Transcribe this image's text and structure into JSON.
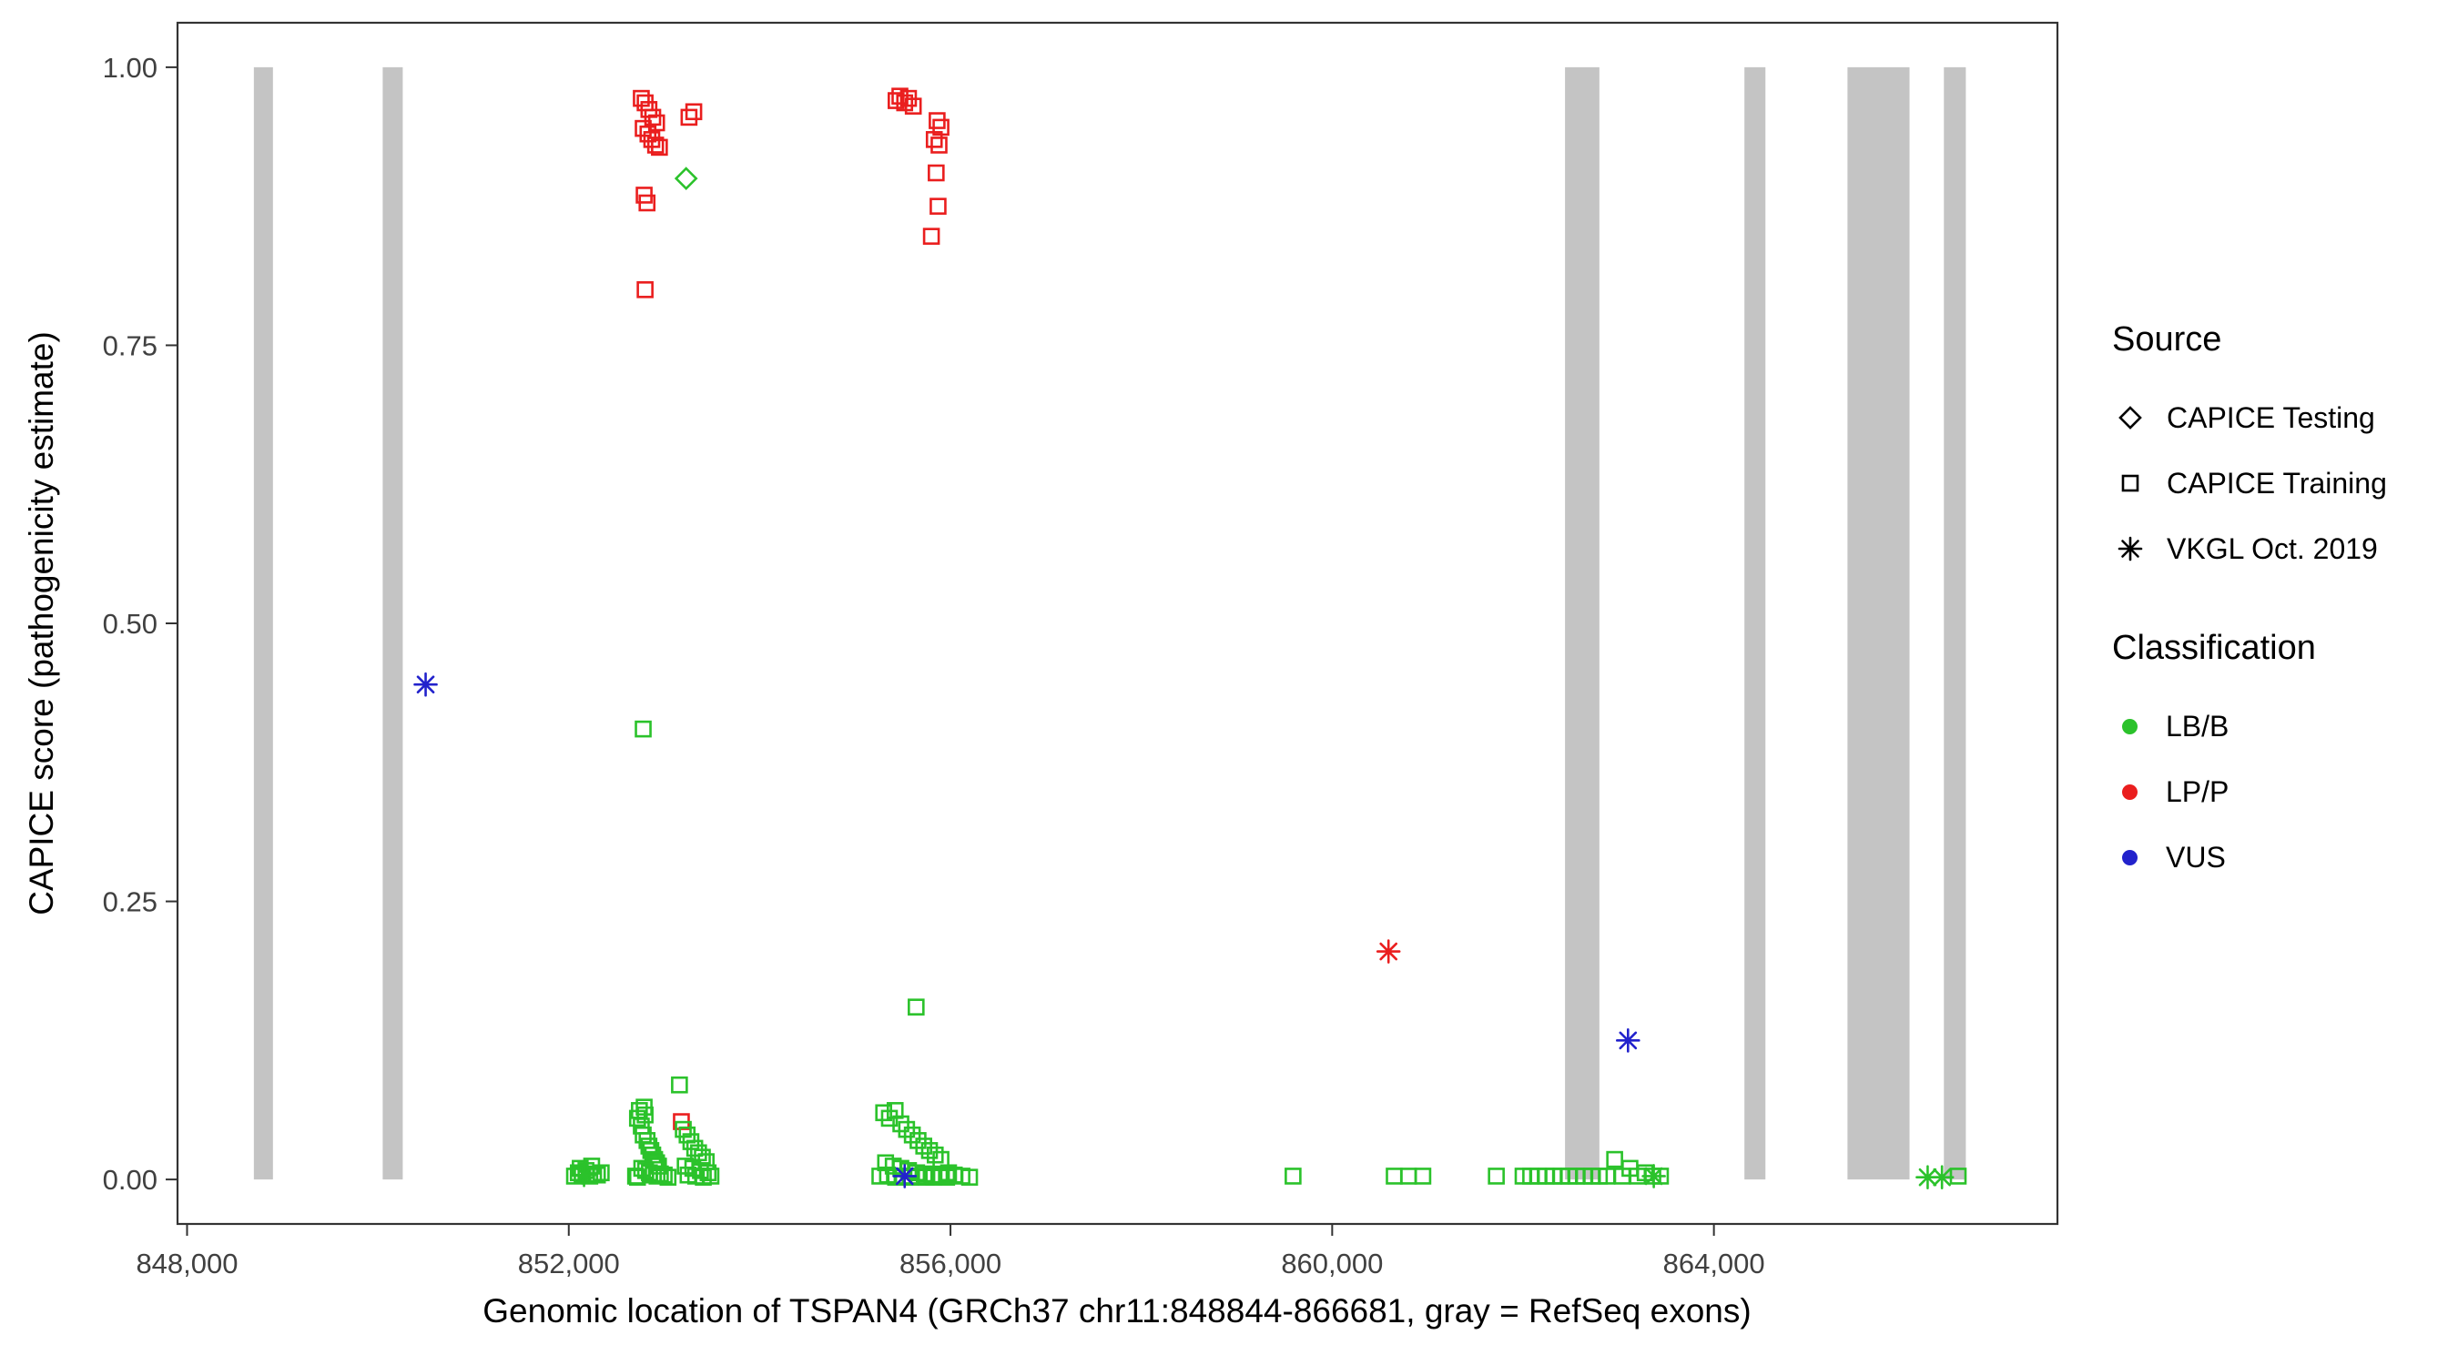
{
  "chart_data": {
    "type": "scatter",
    "xlabel": "Genomic location of TSPAN4 (GRCh37 chr11:848844-866681, gray = RefSeq exons)",
    "ylabel": "CAPICE score (pathogenicity estimate)",
    "xlim": [
      847900,
      867600
    ],
    "ylim": [
      -0.04,
      1.04
    ],
    "x_ticks": [
      848000,
      852000,
      856000,
      860000,
      864000
    ],
    "x_tick_labels": [
      "848,000",
      "852,000",
      "856,000",
      "860,000",
      "864,000"
    ],
    "y_ticks": [
      0,
      0.25,
      0.5,
      0.75,
      1
    ],
    "y_tick_labels": [
      "0.00",
      "0.25",
      "0.50",
      "0.75",
      "1.00"
    ],
    "exon_note": "gray = RefSeq exons",
    "exon_color": "#C4C4C4",
    "exons": [
      [
        848700,
        848900
      ],
      [
        850050,
        850260
      ],
      [
        862440,
        862800
      ],
      [
        864320,
        864540
      ],
      [
        865400,
        866050
      ],
      [
        866410,
        866640
      ]
    ],
    "colors": {
      "LB/B": "#2BC22B",
      "LP/P": "#EA1E1E",
      "VUS": "#2222CC"
    },
    "series": [
      {
        "name": "CAPICE Testing / LB/B",
        "source": "CAPICE Testing",
        "classification": "LB/B",
        "marker": "diamond",
        "points": [
          [
            853230,
            0.9
          ]
        ]
      },
      {
        "name": "CAPICE Training / LP/P",
        "source": "CAPICE Training",
        "classification": "LP/P",
        "marker": "square",
        "points": [
          [
            852760,
            0.972
          ],
          [
            852800,
            0.968
          ],
          [
            852840,
            0.962
          ],
          [
            852880,
            0.955
          ],
          [
            852920,
            0.95
          ],
          [
            852780,
            0.945
          ],
          [
            852830,
            0.94
          ],
          [
            852870,
            0.935
          ],
          [
            852910,
            0.93
          ],
          [
            852950,
            0.928
          ],
          [
            853260,
            0.955
          ],
          [
            853310,
            0.96
          ],
          [
            852790,
            0.885
          ],
          [
            852820,
            0.878
          ],
          [
            852800,
            0.8
          ],
          [
            853180,
            0.052
          ],
          [
            855430,
            0.97
          ],
          [
            855470,
            0.974
          ],
          [
            855520,
            0.968
          ],
          [
            855560,
            0.972
          ],
          [
            855610,
            0.965
          ],
          [
            855860,
            0.952
          ],
          [
            855900,
            0.946
          ],
          [
            855830,
            0.935
          ],
          [
            855880,
            0.93
          ],
          [
            855850,
            0.905
          ],
          [
            855870,
            0.875
          ],
          [
            855800,
            0.848
          ]
        ]
      },
      {
        "name": "CAPICE Training / LB/B",
        "source": "CAPICE Training",
        "classification": "LB/B",
        "marker": "square",
        "points": [
          [
            852060,
            0.003
          ],
          [
            852100,
            0.006
          ],
          [
            852140,
            0.004
          ],
          [
            852180,
            0.008
          ],
          [
            852220,
            0.003
          ],
          [
            852260,
            0.005
          ],
          [
            852300,
            0.004
          ],
          [
            852340,
            0.006
          ],
          [
            852120,
            0.01
          ],
          [
            852240,
            0.012
          ],
          [
            852780,
            0.405
          ],
          [
            852700,
            0.003
          ],
          [
            852720,
            0.055
          ],
          [
            852740,
            0.062
          ],
          [
            852760,
            0.048
          ],
          [
            852780,
            0.04
          ],
          [
            852800,
            0.058
          ],
          [
            852820,
            0.035
          ],
          [
            852840,
            0.03
          ],
          [
            852860,
            0.026
          ],
          [
            852880,
            0.022
          ],
          [
            852900,
            0.018
          ],
          [
            852920,
            0.015
          ],
          [
            852940,
            0.012
          ],
          [
            852765,
            0.01
          ],
          [
            852805,
            0.008
          ],
          [
            852845,
            0.006
          ],
          [
            852885,
            0.004
          ],
          [
            852925,
            0.003
          ],
          [
            852960,
            0.005
          ],
          [
            853000,
            0.004
          ],
          [
            853040,
            0.002
          ],
          [
            852720,
            0.002
          ],
          [
            852790,
            0.065
          ],
          [
            853160,
            0.085
          ],
          [
            853200,
            0.045
          ],
          [
            853240,
            0.04
          ],
          [
            853280,
            0.034
          ],
          [
            853320,
            0.028
          ],
          [
            853360,
            0.024
          ],
          [
            853400,
            0.02
          ],
          [
            853440,
            0.016
          ],
          [
            853220,
            0.012
          ],
          [
            853300,
            0.01
          ],
          [
            853380,
            0.008
          ],
          [
            853460,
            0.006
          ],
          [
            853250,
            0.004
          ],
          [
            853330,
            0.003
          ],
          [
            853410,
            0.002
          ],
          [
            853490,
            0.003
          ],
          [
            855640,
            0.155
          ],
          [
            855300,
            0.06
          ],
          [
            855360,
            0.055
          ],
          [
            855420,
            0.062
          ],
          [
            855480,
            0.05
          ],
          [
            855540,
            0.045
          ],
          [
            855600,
            0.04
          ],
          [
            855660,
            0.035
          ],
          [
            855720,
            0.03
          ],
          [
            855780,
            0.026
          ],
          [
            855840,
            0.022
          ],
          [
            855900,
            0.018
          ],
          [
            855320,
            0.015
          ],
          [
            855400,
            0.012
          ],
          [
            855480,
            0.01
          ],
          [
            855560,
            0.008
          ],
          [
            855645,
            0.006
          ],
          [
            855725,
            0.005
          ],
          [
            855805,
            0.004
          ],
          [
            855885,
            0.003
          ],
          [
            855960,
            0.002
          ],
          [
            856040,
            0.004
          ],
          [
            856120,
            0.003
          ],
          [
            856200,
            0.002
          ],
          [
            855260,
            0.003
          ],
          [
            855340,
            0.004
          ],
          [
            855425,
            0.002
          ],
          [
            855505,
            0.003
          ],
          [
            855585,
            0.002
          ],
          [
            855665,
            0.003
          ],
          [
            855745,
            0.002
          ],
          [
            855825,
            0.002
          ],
          [
            855905,
            0.004
          ],
          [
            855980,
            0.006
          ],
          [
            859590,
            0.003
          ],
          [
            860650,
            0.003
          ],
          [
            860800,
            0.003
          ],
          [
            860950,
            0.003
          ],
          [
            861720,
            0.003
          ],
          [
            862000,
            0.003
          ],
          [
            862080,
            0.003
          ],
          [
            862160,
            0.003
          ],
          [
            862240,
            0.003
          ],
          [
            862320,
            0.003
          ],
          [
            862400,
            0.003
          ],
          [
            862480,
            0.003
          ],
          [
            862560,
            0.003
          ],
          [
            862640,
            0.003
          ],
          [
            862720,
            0.003
          ],
          [
            862800,
            0.003
          ],
          [
            862880,
            0.003
          ],
          [
            862960,
            0.018
          ],
          [
            863040,
            0.003
          ],
          [
            863120,
            0.01
          ],
          [
            863200,
            0.003
          ],
          [
            863280,
            0.006
          ],
          [
            863360,
            0.003
          ],
          [
            863440,
            0.003
          ],
          [
            866560,
            0.003
          ]
        ]
      },
      {
        "name": "VKGL Oct. 2019 / VUS",
        "source": "VKGL Oct. 2019",
        "classification": "VUS",
        "marker": "asterisk",
        "points": [
          [
            850500,
            0.445
          ],
          [
            863100,
            0.125
          ],
          [
            855520,
            0.003
          ]
        ]
      },
      {
        "name": "VKGL Oct. 2019 / LP/P",
        "source": "VKGL Oct. 2019",
        "classification": "LP/P",
        "marker": "asterisk",
        "points": [
          [
            860590,
            0.205
          ]
        ]
      },
      {
        "name": "VKGL Oct. 2019 / LB/B",
        "source": "VKGL Oct. 2019",
        "classification": "LB/B",
        "marker": "asterisk",
        "points": [
          [
            852160,
            0.004
          ],
          [
            863370,
            0.003
          ],
          [
            866240,
            0.002
          ],
          [
            866390,
            0.002
          ]
        ]
      }
    ]
  },
  "legend": {
    "source_title": "Source",
    "source_items": [
      {
        "label": "CAPICE Testing",
        "marker": "diamond"
      },
      {
        "label": "CAPICE Training",
        "marker": "square"
      },
      {
        "label": "VKGL Oct. 2019",
        "marker": "asterisk"
      }
    ],
    "classification_title": "Classification",
    "classification_items": [
      {
        "label": "LB/B",
        "color": "#2BC22B"
      },
      {
        "label": "LP/P",
        "color": "#EA1E1E"
      },
      {
        "label": "VUS",
        "color": "#2222CC"
      }
    ]
  }
}
